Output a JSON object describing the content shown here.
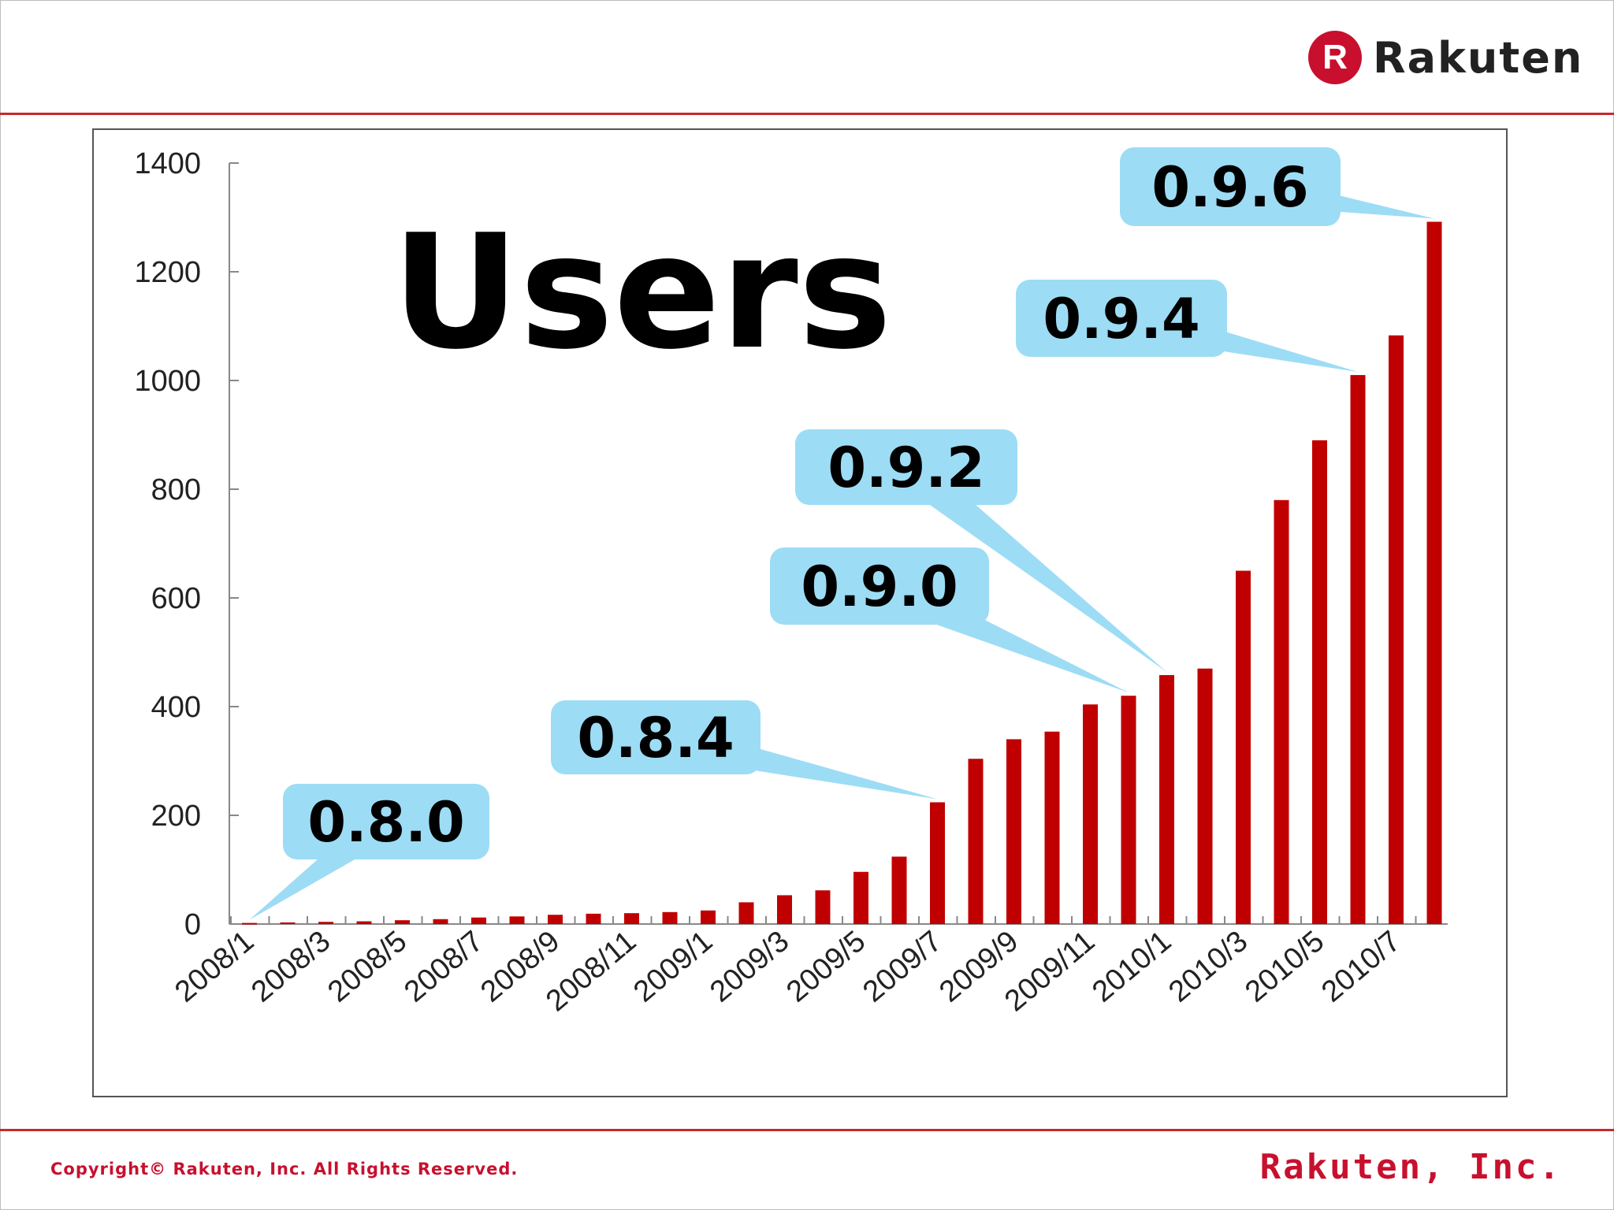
{
  "header": {
    "logo_letter": "R",
    "logo_text": "Rakuten"
  },
  "footer": {
    "copyright": "Copyright© Rakuten, Inc. All Rights Reserved.",
    "company": "Rakuten, Inc."
  },
  "colors": {
    "accent": "#c8282d",
    "bar": "#c00000",
    "callout": "#9ddcf5"
  },
  "chart_data": {
    "type": "bar",
    "title": "Users",
    "xlabel": "",
    "ylabel": "",
    "ylim": [
      0,
      1400
    ],
    "yticks": [
      0,
      200,
      400,
      600,
      800,
      1000,
      1200,
      1400
    ],
    "categories": [
      "2008/1",
      "2008/2",
      "2008/3",
      "2008/4",
      "2008/5",
      "2008/6",
      "2008/7",
      "2008/8",
      "2008/9",
      "2008/10",
      "2008/11",
      "2008/12",
      "2009/1",
      "2009/2",
      "2009/3",
      "2009/4",
      "2009/5",
      "2009/6",
      "2009/7",
      "2009/8",
      "2009/9",
      "2009/10",
      "2009/11",
      "2009/12",
      "2010/1",
      "2010/2",
      "2010/3",
      "2010/4",
      "2010/5",
      "2010/6",
      "2010/7",
      "2010/8"
    ],
    "tick_labels": [
      "2008/1",
      "2008/3",
      "2008/5",
      "2008/7",
      "2008/9",
      "2008/11",
      "2009/1",
      "2009/3",
      "2009/5",
      "2009/7",
      "2009/9",
      "2009/11",
      "2010/1",
      "2010/3",
      "2010/5",
      "2010/7"
    ],
    "values": [
      2,
      3,
      4,
      5,
      7,
      9,
      12,
      14,
      17,
      19,
      20,
      22,
      25,
      40,
      53,
      62,
      96,
      124,
      224,
      304,
      340,
      354,
      404,
      420,
      458,
      470,
      650,
      780,
      890,
      1010,
      1083,
      1292
    ],
    "annotations": [
      {
        "label": "0.8.0",
        "category": "2008/1"
      },
      {
        "label": "0.8.4",
        "category": "2009/7"
      },
      {
        "label": "0.9.0",
        "category": "2009/12"
      },
      {
        "label": "0.9.2",
        "category": "2010/1"
      },
      {
        "label": "0.9.4",
        "category": "2010/6"
      },
      {
        "label": "0.9.6",
        "category": "2010/8"
      }
    ]
  }
}
